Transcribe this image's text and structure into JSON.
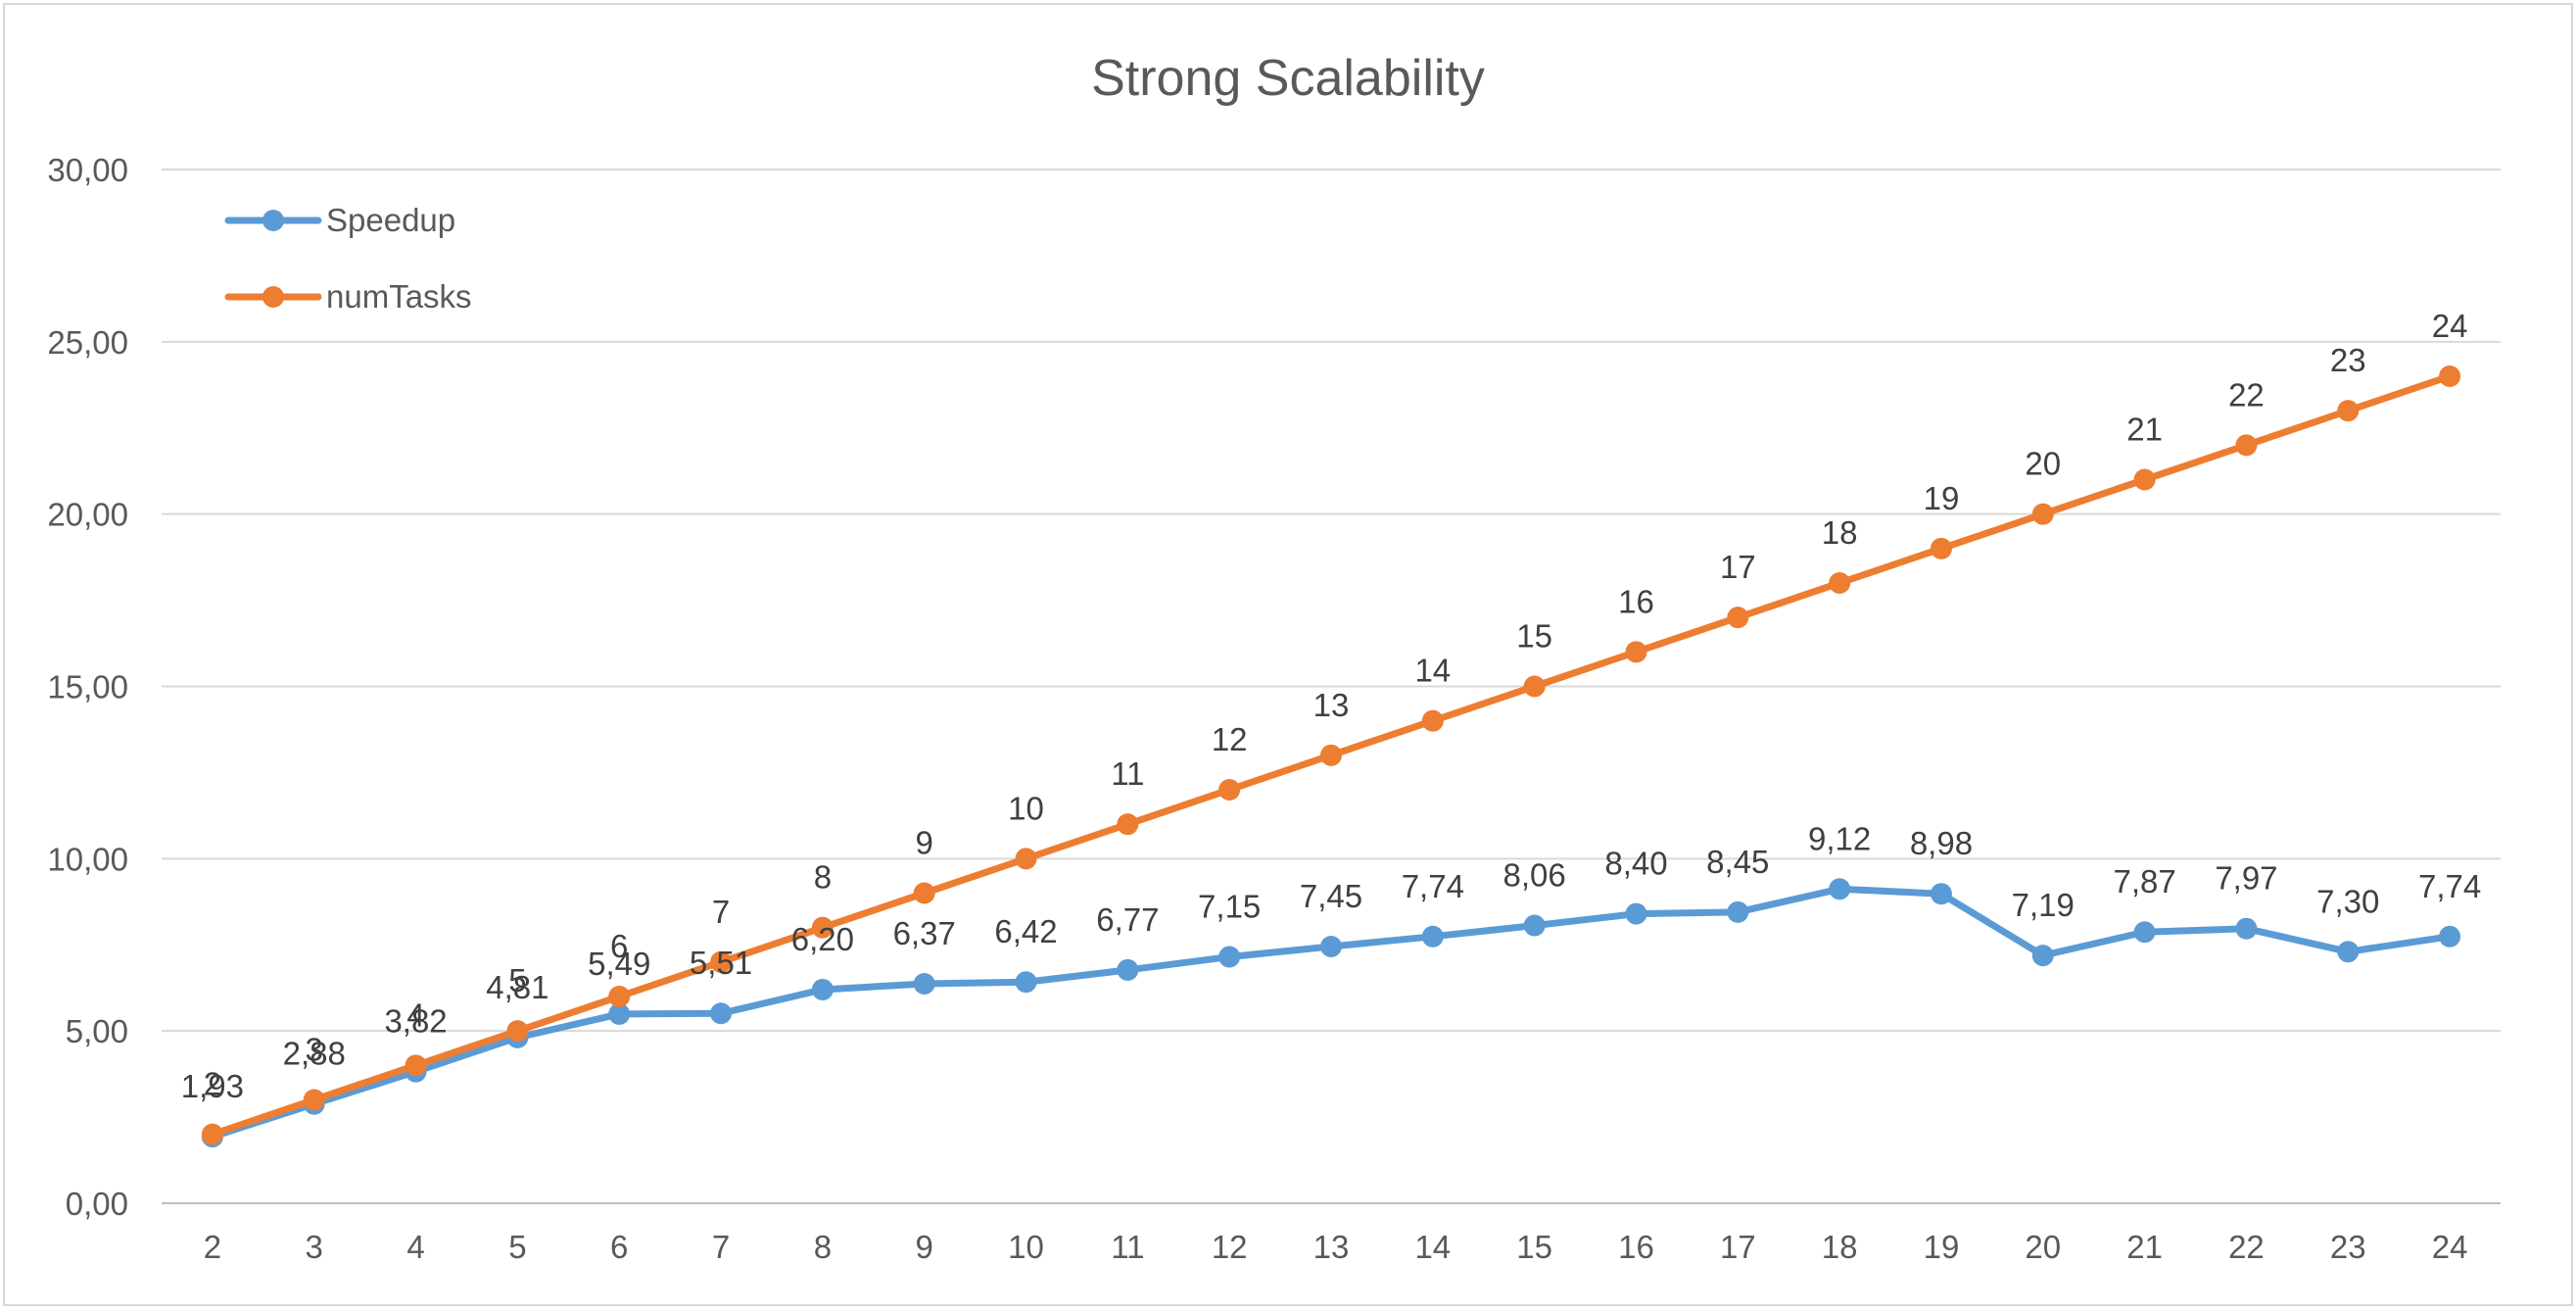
{
  "chart_data": {
    "type": "line",
    "title": "Strong Scalability",
    "xlabel": "",
    "ylabel": "",
    "categories": [
      "2",
      "3",
      "4",
      "5",
      "6",
      "7",
      "8",
      "9",
      "10",
      "11",
      "12",
      "13",
      "14",
      "15",
      "16",
      "17",
      "18",
      "19",
      "20",
      "21",
      "22",
      "23",
      "24"
    ],
    "ylim": [
      0,
      30
    ],
    "y_ticks": [
      "0,00",
      "5,00",
      "10,00",
      "15,00",
      "20,00",
      "25,00",
      "30,00"
    ],
    "grid": true,
    "legend_position": "top-left",
    "series": [
      {
        "name": "Speedup",
        "color": "#5b9bd5",
        "values": [
          1.93,
          2.88,
          3.82,
          4.81,
          5.49,
          5.51,
          6.2,
          6.37,
          6.42,
          6.77,
          7.15,
          7.45,
          7.74,
          8.06,
          8.4,
          8.45,
          9.12,
          8.98,
          7.19,
          7.87,
          7.97,
          7.3,
          7.74
        ],
        "labels": [
          "1,93",
          "2,88",
          "3,82",
          "4,81",
          "5,49",
          "5,51",
          "6,20",
          "6,37",
          "6,42",
          "6,77",
          "7,15",
          "7,45",
          "7,74",
          "8,06",
          "8,40",
          "8,45",
          "9,12",
          "8,98",
          "7,19",
          "7,87",
          "7,97",
          "7,30",
          "7,74"
        ]
      },
      {
        "name": "numTasks",
        "color": "#ed7d31",
        "values": [
          2,
          3,
          4,
          5,
          6,
          7,
          8,
          9,
          10,
          11,
          12,
          13,
          14,
          15,
          16,
          17,
          18,
          19,
          20,
          21,
          22,
          23,
          24
        ],
        "labels": [
          "2",
          "3",
          "4",
          "5",
          "6",
          "7",
          "8",
          "9",
          "10",
          "11",
          "12",
          "13",
          "14",
          "15",
          "16",
          "17",
          "18",
          "19",
          "20",
          "21",
          "22",
          "23",
          "24"
        ]
      }
    ]
  }
}
